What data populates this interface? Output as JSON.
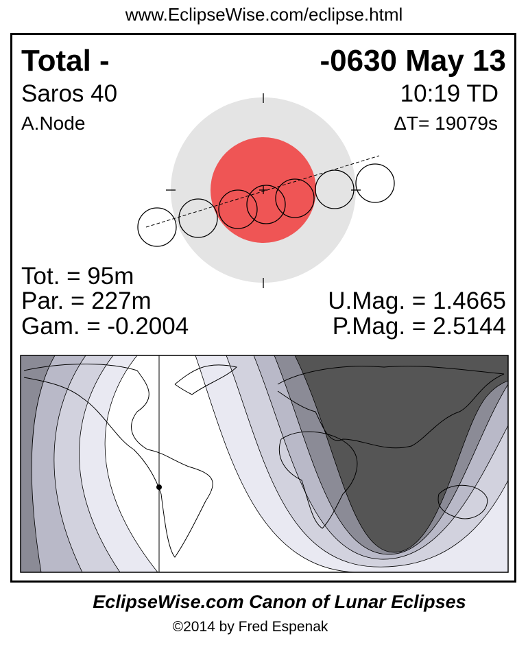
{
  "url": "www.EclipseWise.com/eclipse.html",
  "eclipse": {
    "type": "Total  -",
    "date": "-0630 May 13",
    "saros": "Saros  40",
    "time": "10:19 TD",
    "node": "A.Node",
    "delta_t": "ΔT=  19079s",
    "total_duration": "Tot. =  95m",
    "partial_duration": "Par. = 227m",
    "gamma": "Gam. = -0.2004",
    "umbral_magnitude": "U.Mag. = 1.4665",
    "penumbral_magnitude": "P.Mag. = 2.5144"
  },
  "colors": {
    "penumbra": "#e4e4e4",
    "umbra": "#ef5555",
    "map_dark": "#555555",
    "map_band_1": "#e9e9f2",
    "map_band_2": "#d2d2de",
    "map_band_3": "#b9b9c8",
    "map_band_4": "#8b8b96"
  },
  "footer": {
    "title": "EclipseWise.com Canon of Lunar Eclipses",
    "copyright": "©2014 by Fred Espenak"
  }
}
